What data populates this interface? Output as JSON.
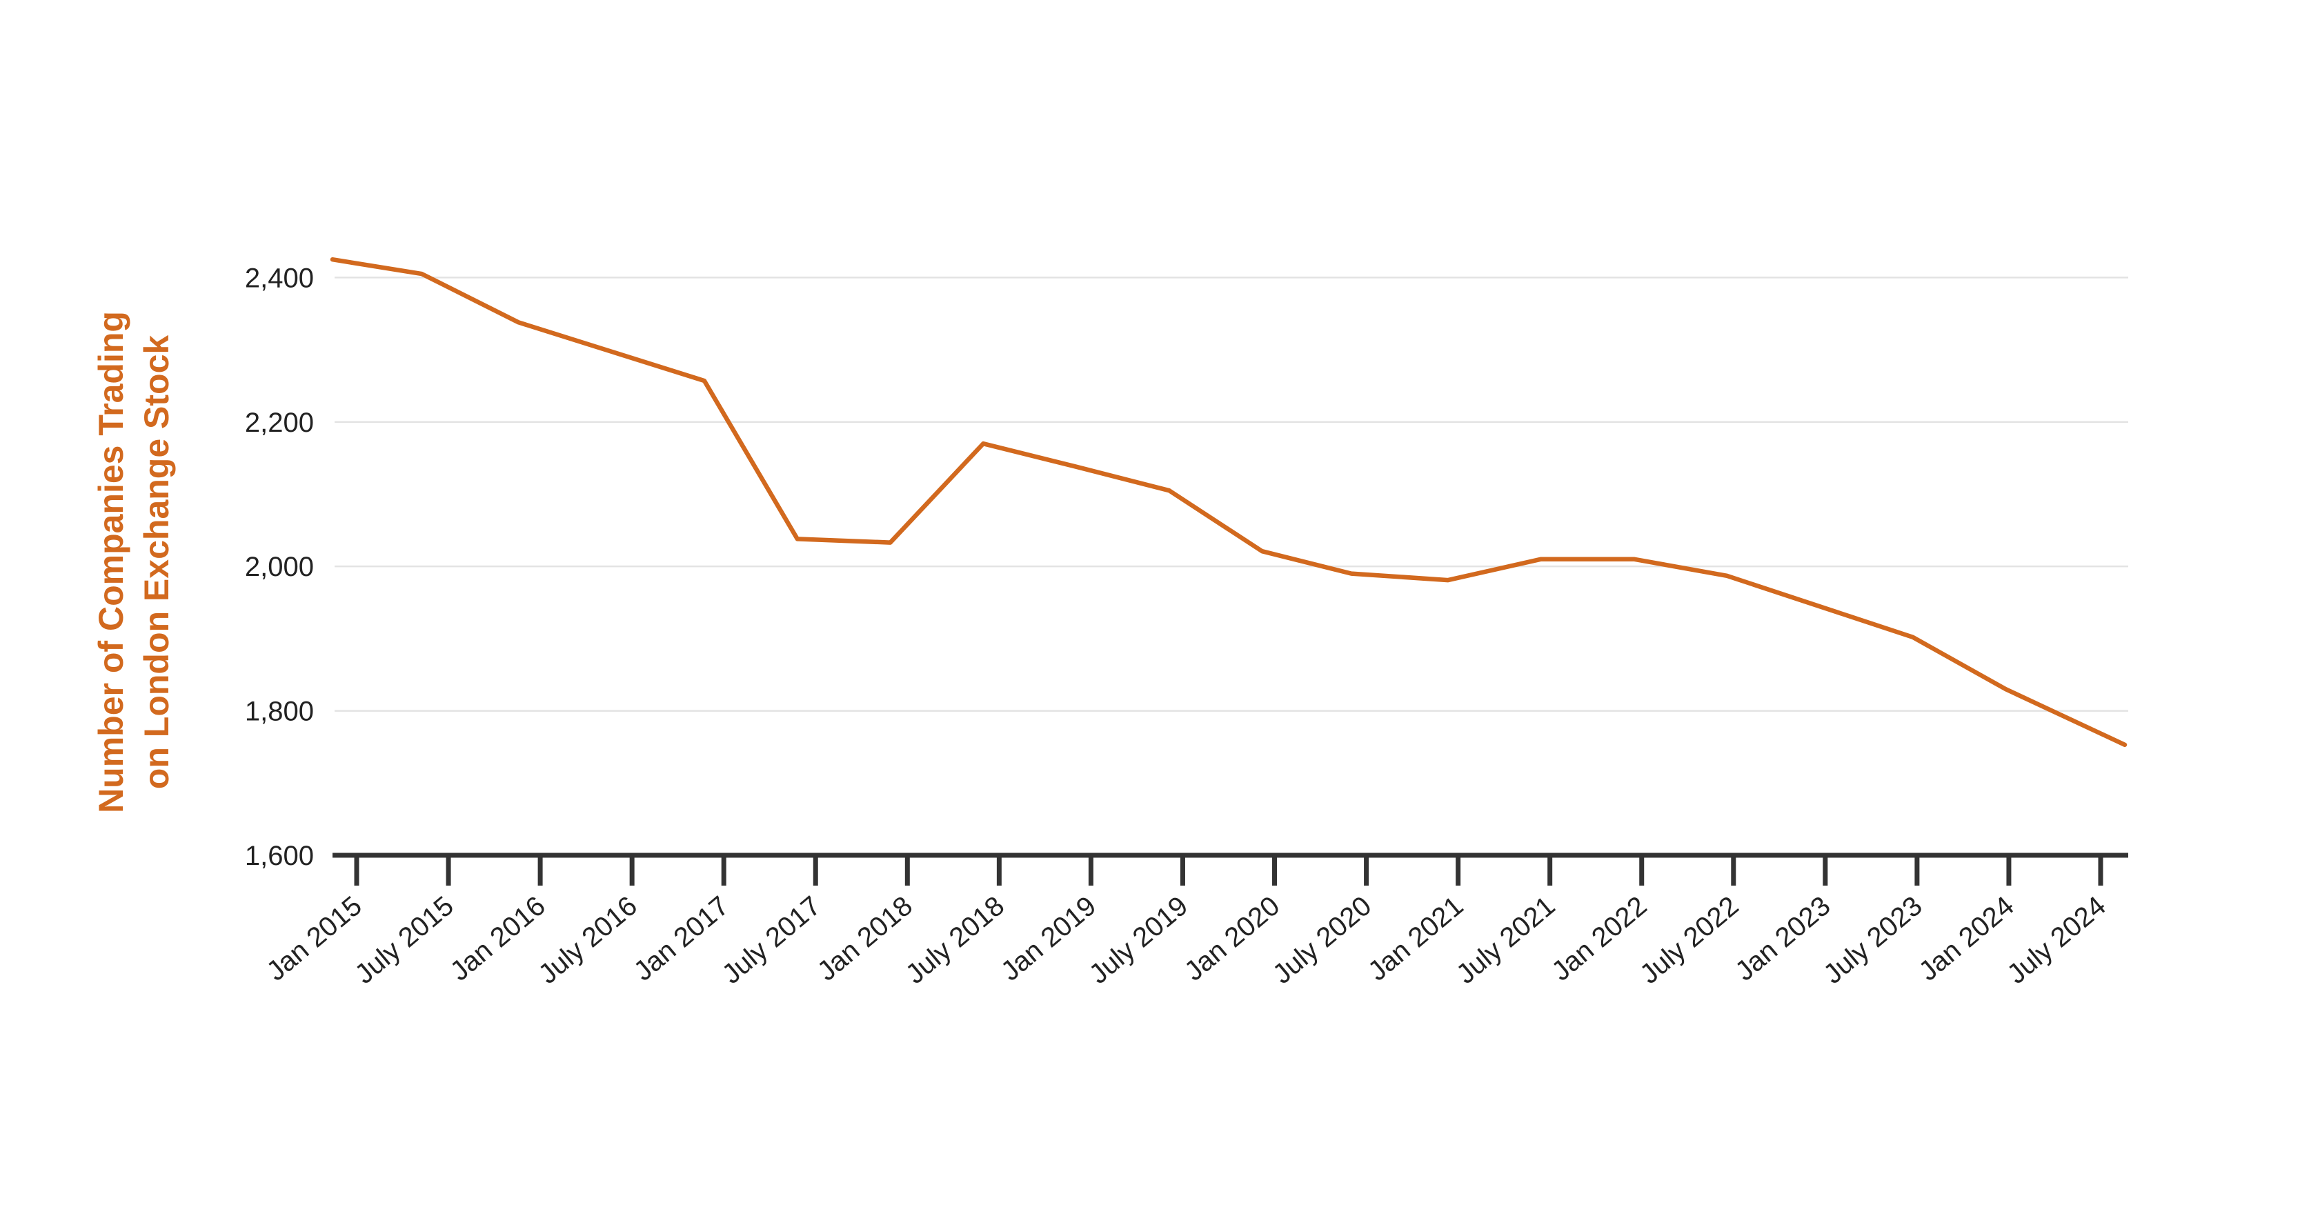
{
  "chart_data": {
    "type": "line",
    "title": "",
    "xlabel": "",
    "ylabel_lines": [
      "Number of Companies Trading",
      "on London Exchange Stock"
    ],
    "ylim": [
      1600,
      2450
    ],
    "yticks": [
      1600,
      1800,
      2000,
      2200,
      2400
    ],
    "ytick_labels": [
      "1,600",
      "1,800",
      "2,000",
      "2,200",
      "2,400"
    ],
    "grid": true,
    "x_range": [
      2014.92,
      2024.56
    ],
    "series": [
      {
        "x": [
          2014.92,
          2015.4,
          2015.92,
          2016.92,
          2017.42,
          2017.92,
          2018.42,
          2018.92,
          2019.42,
          2019.92,
          2020.4,
          2020.92,
          2021.42,
          2021.92,
          2022.42,
          2023.42,
          2023.92,
          2024.56
        ],
        "y": [
          2425,
          2405,
          2338,
          2257,
          2038,
          2033,
          2170,
          2138,
          2105,
          2021,
          1990,
          1981,
          2010,
          2010,
          1987,
          1902,
          1830,
          1753
        ]
      }
    ],
    "xticks": [
      2015.0,
      2015.5,
      2016.0,
      2016.5,
      2017.0,
      2017.5,
      2018.0,
      2018.5,
      2019.0,
      2019.5,
      2020.0,
      2020.5,
      2021.0,
      2021.5,
      2022.0,
      2022.5,
      2023.0,
      2023.5,
      2024.0,
      2024.5
    ],
    "xtick_labels": [
      "Jan 2015",
      "July 2015",
      "Jan 2016",
      "July 2016",
      "Jan 2017",
      "July 2017",
      "Jan 2018",
      "July 2018",
      "Jan 2019",
      "July 2019",
      "Jan 2020",
      "July 2020",
      "Jan 2021",
      "July 2021",
      "Jan 2022",
      "July 2022",
      "Jan 2023",
      "July 2023",
      "Jan 2024",
      "July 2024"
    ],
    "colors": {
      "series": "#d2691e",
      "ylabel": "#d2691e"
    }
  }
}
